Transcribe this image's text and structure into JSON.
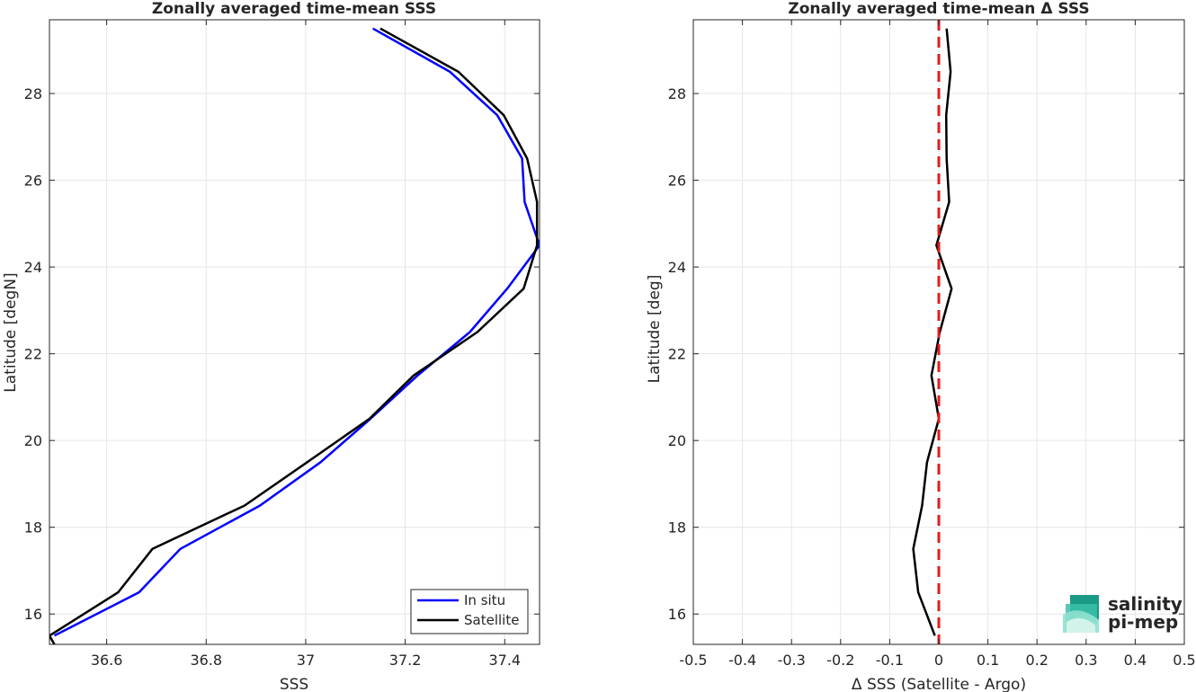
{
  "chart_data": [
    {
      "type": "line",
      "title": "Zonally averaged time-mean SSS",
      "xlabel": "SSS",
      "ylabel": "Latitude [degN]",
      "xlim": [
        36.485,
        37.47
      ],
      "ylim": [
        15.3,
        29.7
      ],
      "xticks": [
        36.6,
        36.8,
        37,
        37.2,
        37.4
      ],
      "xtick_labels": [
        "36.6",
        "36.8",
        "37",
        "37.2",
        "37.4"
      ],
      "yticks": [
        16,
        18,
        20,
        22,
        24,
        26,
        28
      ],
      "ytick_labels": [
        "16",
        "18",
        "20",
        "22",
        "24",
        "26",
        "28"
      ],
      "grid": true,
      "legend_position": "bottom-right",
      "series": [
        {
          "name": "In situ",
          "color": "#0000ff",
          "x": [
            36.495,
            36.665,
            36.748,
            36.908,
            37.03,
            37.13,
            37.225,
            37.33,
            37.405,
            37.47,
            37.44,
            37.435,
            37.385,
            37.29,
            37.135
          ],
          "y": [
            15.5,
            16.5,
            17.5,
            18.5,
            19.5,
            20.5,
            21.5,
            22.5,
            23.5,
            24.5,
            25.5,
            26.5,
            27.5,
            28.5,
            29.5
          ]
        },
        {
          "name": "Satellite",
          "color": "#000000",
          "x": [
            36.485,
            36.623,
            36.692,
            36.877,
            37.003,
            37.128,
            37.217,
            37.345,
            37.438,
            37.465,
            37.465,
            37.445,
            37.398,
            37.307,
            37.15
          ],
          "y": [
            15.5,
            16.5,
            17.5,
            18.5,
            19.5,
            20.5,
            21.5,
            22.5,
            23.5,
            24.5,
            25.5,
            26.5,
            27.5,
            28.5,
            29.5
          ],
          "x_extra": [
            36.495
          ],
          "y_extra": [
            15.3
          ]
        }
      ]
    },
    {
      "type": "line",
      "title": "Zonally averaged time-mean Δ SSS",
      "xlabel": "Δ SSS (Satellite - Argo)",
      "ylabel": "Latitude [deg]",
      "xlim": [
        -0.5,
        0.5
      ],
      "ylim": [
        15.3,
        29.7
      ],
      "xticks": [
        -0.5,
        -0.4,
        -0.3,
        -0.2,
        -0.1,
        0,
        0.1,
        0.2,
        0.3,
        0.4,
        0.5
      ],
      "xtick_labels": [
        "-0.5",
        "-0.4",
        "-0.3",
        "-0.2",
        "-0.1",
        "0",
        "0.1",
        "0.2",
        "0.3",
        "0.4",
        "0.5"
      ],
      "yticks": [
        16,
        18,
        20,
        22,
        24,
        26,
        28
      ],
      "ytick_labels": [
        "16",
        "18",
        "20",
        "22",
        "24",
        "26",
        "28"
      ],
      "grid": true,
      "reference_line": {
        "x": 0,
        "color": "#e41a1c",
        "style": "dashed"
      },
      "series": [
        {
          "color": "#000000",
          "x": [
            -0.008,
            -0.042,
            -0.052,
            -0.034,
            -0.024,
            0.0,
            -0.015,
            0.002,
            0.026,
            -0.005,
            0.021,
            0.016,
            0.015,
            0.024,
            0.016
          ],
          "y": [
            15.5,
            16.5,
            17.5,
            18.5,
            19.5,
            20.5,
            21.5,
            22.5,
            23.5,
            24.5,
            25.5,
            26.5,
            27.5,
            28.5,
            29.5
          ]
        }
      ]
    }
  ],
  "logo": {
    "line1": "salinity",
    "line2": "pi-mep",
    "color1": "#1fae9c",
    "color2": "#1f6f63"
  }
}
